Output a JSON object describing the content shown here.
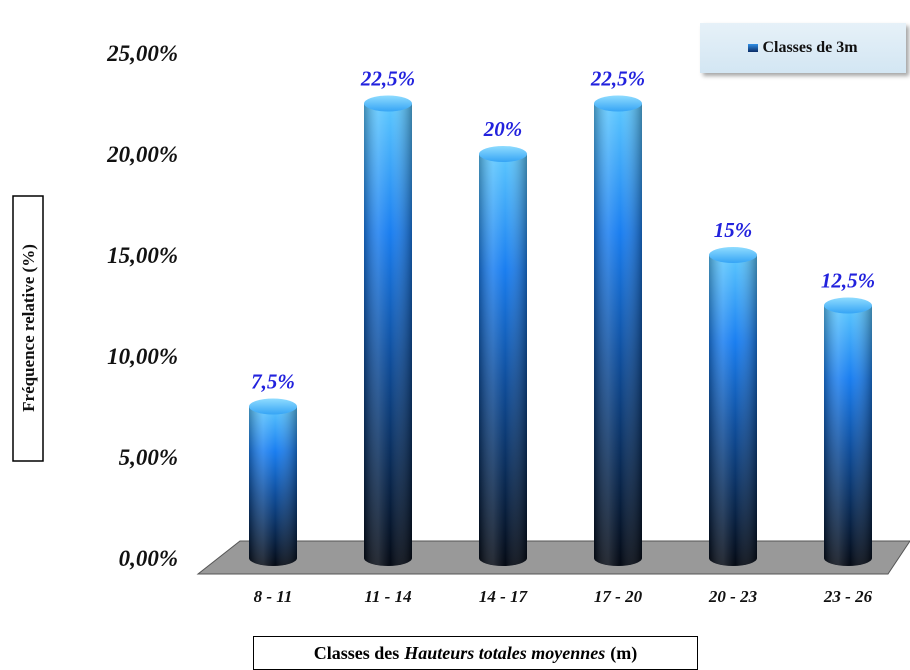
{
  "chart_data": {
    "type": "bar",
    "categories": [
      "8 - 11",
      "11 - 14",
      "14 - 17",
      "17 - 20",
      "20 - 23",
      "23 - 26"
    ],
    "series": [
      {
        "name": "Classes de 3m",
        "values": [
          7.5,
          22.5,
          20,
          22.5,
          15,
          12.5
        ]
      }
    ],
    "data_labels": [
      "7,5%",
      "22,5%",
      "20%",
      "22,5%",
      "15%",
      "12,5%"
    ],
    "yticks": [
      "0,00%",
      "5,00%",
      "10,00%",
      "15,00%",
      "20,00%",
      "25,00%"
    ],
    "ylim": [
      0,
      25
    ],
    "ylabel": "Fréquence relative (%)",
    "xlabel": {
      "prefix": "Classes des",
      "emphasis": "Hauteurs totales moyennes",
      "suffix": "(m)"
    },
    "legend_position": "top-right",
    "grid": false,
    "colors": {
      "bar_top": "#5cc8ff",
      "bar_mid": "#1a7ef0",
      "bar_bottom": "#050a14",
      "floor": "#999999",
      "data_label": "#2222dd"
    }
  }
}
